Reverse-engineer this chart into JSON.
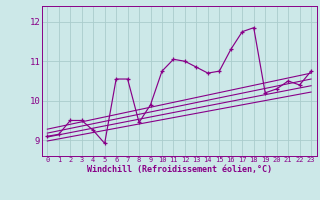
{
  "bg_color": "#cce8e8",
  "line_color": "#880088",
  "grid_color": "#aacccc",
  "xlabel": "Windchill (Refroidissement éolien,°C)",
  "xlim": [
    -0.5,
    23.5
  ],
  "ylim": [
    8.6,
    12.4
  ],
  "yticks": [
    9,
    10,
    11,
    12
  ],
  "xticks": [
    0,
    1,
    2,
    3,
    4,
    5,
    6,
    7,
    8,
    9,
    10,
    11,
    12,
    13,
    14,
    15,
    16,
    17,
    18,
    19,
    20,
    21,
    22,
    23
  ],
  "main_x": [
    0,
    1,
    2,
    3,
    4,
    5,
    6,
    7,
    8,
    9,
    10,
    11,
    12,
    13,
    14,
    15,
    16,
    17,
    18,
    19,
    20,
    21,
    22,
    23
  ],
  "main_y": [
    9.1,
    9.15,
    9.5,
    9.5,
    9.25,
    8.92,
    10.55,
    10.55,
    9.45,
    9.9,
    10.75,
    11.05,
    11.0,
    10.85,
    10.7,
    10.75,
    11.3,
    11.75,
    11.85,
    10.2,
    10.3,
    10.5,
    10.4,
    10.75
  ],
  "reg_lines": [
    {
      "x": [
        0,
        23
      ],
      "y": [
        9.28,
        10.7
      ]
    },
    {
      "x": [
        0,
        23
      ],
      "y": [
        9.18,
        10.55
      ]
    },
    {
      "x": [
        0,
        23
      ],
      "y": [
        9.08,
        10.38
      ]
    },
    {
      "x": [
        0,
        23
      ],
      "y": [
        8.98,
        10.22
      ]
    }
  ]
}
